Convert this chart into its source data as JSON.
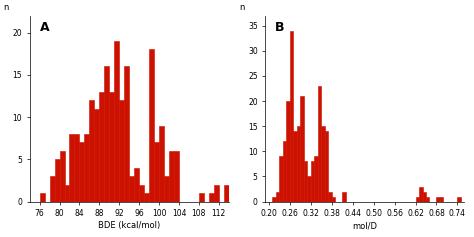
{
  "panel_A": {
    "label": "A",
    "xlabel": "BDE (kcal/mol)",
    "ylabel": "n",
    "xlim": [
      74,
      114
    ],
    "ylim": [
      0,
      22
    ],
    "xticks": [
      76,
      80,
      84,
      88,
      92,
      96,
      100,
      104,
      108,
      112
    ],
    "yticks": [
      0,
      5,
      10,
      15,
      20
    ],
    "bin_start": 76,
    "bin_width": 1,
    "bar_heights": [
      1,
      0,
      3,
      5,
      6,
      2,
      8,
      8,
      7,
      8,
      12,
      11,
      13,
      16,
      13,
      19,
      12,
      16,
      3,
      4,
      2,
      1,
      18,
      7,
      9,
      3,
      6,
      6,
      0,
      0,
      0,
      0,
      1,
      0,
      1,
      2,
      0,
      2,
      1,
      1
    ]
  },
  "panel_B": {
    "label": "B",
    "xlabel": "mol/D",
    "ylabel": "n",
    "xlim": [
      0.19,
      0.76
    ],
    "ylim": [
      0,
      37
    ],
    "xticks": [
      0.2,
      0.26,
      0.32,
      0.38,
      0.44,
      0.5,
      0.56,
      0.62,
      0.68,
      0.74
    ],
    "yticks": [
      0,
      5,
      10,
      15,
      20,
      25,
      30,
      35
    ],
    "bin_start": 0.2,
    "bin_width": 0.01,
    "bar_heights": [
      0,
      1,
      2,
      9,
      12,
      20,
      34,
      14,
      15,
      21,
      8,
      5,
      8,
      9,
      23,
      15,
      14,
      2,
      1,
      0,
      0,
      2,
      0,
      0,
      0,
      0,
      0,
      0,
      0,
      0,
      0,
      0,
      0,
      0,
      0,
      0,
      0,
      0,
      0,
      0,
      0,
      0,
      1,
      3,
      2,
      1,
      0,
      0,
      1,
      1,
      0,
      0,
      0,
      0,
      1,
      0
    ]
  },
  "bar_color": "#cc1100",
  "bar_edgecolor": "#cc1100",
  "background_color": "#ffffff",
  "fig_width": 4.74,
  "fig_height": 2.37,
  "dpi": 100
}
